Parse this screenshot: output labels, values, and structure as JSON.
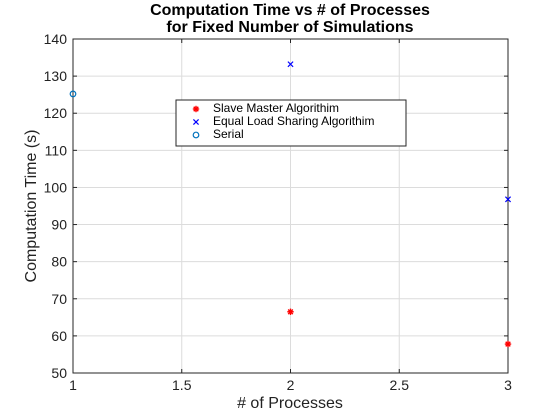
{
  "chart_data": {
    "type": "scatter",
    "title": [
      "Computation Time vs # of Processes",
      "for Fixed Number of Simulations"
    ],
    "xlabel": "# of Processes",
    "ylabel": "Computation Time (s)",
    "xlim": [
      1,
      3
    ],
    "ylim": [
      50,
      140
    ],
    "xticks": [
      1,
      1.5,
      2,
      2.5,
      3
    ],
    "xtick_labels": [
      "1",
      "1.5",
      "2",
      "2.5",
      "3"
    ],
    "yticks": [
      50,
      60,
      70,
      80,
      90,
      100,
      110,
      120,
      130,
      140
    ],
    "ytick_labels": [
      "50",
      "60",
      "70",
      "80",
      "90",
      "100",
      "110",
      "120",
      "130",
      "140"
    ],
    "grid": true,
    "legend_position": "upper-center",
    "series": [
      {
        "name": "Slave Master Algorithim",
        "marker": "asterisk",
        "color": "#ff0000",
        "x": [
          2,
          3
        ],
        "y": [
          66.5,
          57.8
        ]
      },
      {
        "name": "Equal Load Sharing Algorithim",
        "marker": "x",
        "color": "#0000ff",
        "x": [
          2,
          3
        ],
        "y": [
          133.2,
          96.8
        ]
      },
      {
        "name": "Serial",
        "marker": "circle",
        "color": "#0072bd",
        "x": [
          1
        ],
        "y": [
          125.2
        ]
      }
    ]
  }
}
